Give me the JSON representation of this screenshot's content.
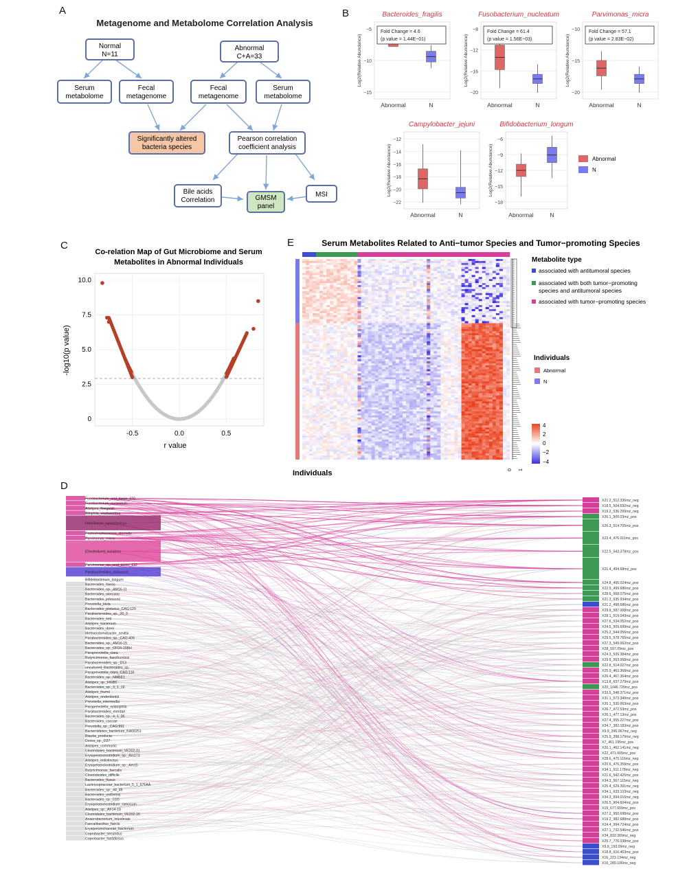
{
  "panels": {
    "A": {
      "letter": "A",
      "title": "Metagenome and Metabolome Correlation Analysis",
      "nodes": {
        "normal_l1": "Normal",
        "normal_l2": "N=11",
        "abnormal_l1": "Abnormal",
        "abnormal_l2": "C+A=33",
        "serum_metabolome_1_l1": "Serum",
        "serum_metabolome_1_l2": "metabolome",
        "fecal_metagenome_1_l1": "Fecal",
        "fecal_metagenome_1_l2": "metagenome",
        "fecal_metagenome_2_l1": "Fecal",
        "fecal_metagenome_2_l2": "metagenome",
        "serum_metabolome_2_l1": "Serum",
        "serum_metabolome_2_l2": "metabolome",
        "sig_bacteria_l1": "Significantly altered",
        "sig_bacteria_l2": "bacteria species",
        "pearson_l1": "Pearson correlation",
        "pearson_l2": "coefficient analysis",
        "bile_l1": "Bile acids",
        "bile_l2": "Correlation",
        "gmsm_l1": "GMSM",
        "gmsm_l2": "panel",
        "msi": "MSI"
      },
      "colors": {
        "box_border": "#5a6ea8",
        "arrow": "#7ea6d8",
        "sig_fill": "#f5c7a6",
        "gmsm_fill": "#cfe6c0"
      }
    },
    "B": {
      "letter": "B",
      "ylabel": "Log2(Relative Abundance)",
      "legend": [
        "Abnormal",
        "N"
      ],
      "colors": {
        "Abnormal": "#e06666",
        "N": "#7b7bf0",
        "title": "#d9333f"
      },
      "plots": [
        {
          "title": "Bacteroides_fragilis",
          "fc": "Fold Change = 4.6",
          "p": "(p value = 1.44E−01)",
          "yticks": [
            "−5",
            "−10",
            "−15"
          ],
          "xticks": [
            "Abnormal",
            "N"
          ]
        },
        {
          "title": "Fusobacterium_nucleatum",
          "fc": "Fold Change = 61.4",
          "p": "(p value = 1.56E−03)",
          "yticks": [
            "−8",
            "−12",
            "−16",
            "−20"
          ],
          "xticks": [
            "Abnormal",
            "N"
          ]
        },
        {
          "title": "Parvimonas_micra",
          "fc": "Fold Change = 57.1",
          "p": "(p value = 2.83E−02)",
          "yticks": [
            "−10",
            "−15",
            "−20"
          ],
          "xticks": [
            "Abnormal",
            "N"
          ]
        },
        {
          "title": "Campylobacter_jejuni",
          "fc": "",
          "p": "",
          "yticks": [
            "−12",
            "−14",
            "−16",
            "−18",
            "−20",
            "−22"
          ],
          "xticks": [
            "Abnormal",
            "N"
          ]
        },
        {
          "title": "Bifidobacterium_longum",
          "fc": "",
          "p": "",
          "yticks": [
            "−6",
            "−9",
            "−12",
            "−15",
            "−18"
          ],
          "xticks": [
            "Abnormal",
            "N"
          ]
        }
      ]
    },
    "C": {
      "letter": "C",
      "title_l1": "Co-relation Map of Gut Microbiome and Serum",
      "title_l2": "Metabolites in Abnormal Individuals",
      "xlabel": "r value",
      "ylabel": "-log10(p value)",
      "xticks": [
        "-0.5",
        "0.0",
        "0.5"
      ],
      "yticks": [
        "0",
        "2.5",
        "5.0",
        "7.5",
        "10.0"
      ],
      "colors": {
        "significant": "#b5402a",
        "nonsignificant": "#c8c8c8"
      }
    },
    "E": {
      "letter": "E",
      "title": "Serum Metabolites Related to Anti−tumor Species and Tumor−promoting Species",
      "metabolite_type_title": "Metabolite type",
      "metabolite_types": [
        {
          "label_l1": "associated with antitumoral species",
          "label_l2": "",
          "label_l3": "",
          "color": "#3a4fd0"
        },
        {
          "label_l1": "associated with both tumor−promoting",
          "label_l2": "species and antitumoral species",
          "label_l3": "",
          "color": "#3c9a55"
        },
        {
          "label_l1": "associated with tumor−promoting species",
          "label_l2": "",
          "label_l3": "",
          "color": "#d6409a"
        }
      ],
      "individuals_title": "Individuals",
      "individuals": [
        {
          "label": "Abnormal",
          "color": "#e87878"
        },
        {
          "label": "N",
          "color": "#7b7bf0"
        }
      ],
      "scale_ticks": [
        "4",
        "2",
        "0",
        "−2",
        "−4"
      ],
      "dendro_ticks": [
        "0",
        "1"
      ],
      "xlabel": "Individuals"
    },
    "D": {
      "letter": "D",
      "species": [
        "Fusobacterium_oral_taxon_370",
        "Fusobacterium_nucleatum",
        "Alistipes_finegoldii",
        "Bilophila_wadsworthia",
        "Odoribacter_splanchnicus",
        "Peptostreptococcus_stomatis",
        "Parvimonas_micra",
        "[Clostridium]_scindens",
        "Parvimonas_sp._oral_taxon_110",
        "Parabacteroides_distasonis",
        "Bifidobacterium_longum",
        "Bacteroides_faecis",
        "Bacteroides_sp._AM16-11",
        "Bacteroides_stercoris",
        "Bacteroides_johnsonii",
        "Prevotella_bivia",
        "Bacteroides_plebeius_CAG:120",
        "Parabacteroides_sp._20_3",
        "Bacteroides_ileti",
        "Alistipes_bacterium",
        "Bacteroides_dorei",
        "Methanobrevibacter_smithii",
        "Parabacteroides_sp._CAG:409",
        "Bacteroides_sp._AM16-15",
        "Bacteroides_sp._OF04-15BH",
        "Paraprevotella_clara",
        "Butyricimonas_faecihominis",
        "Parabacteroides_sp._D13",
        "uncultured_Bacteroides_sp.",
        "Paraprevotella_clara_CAG:116",
        "Bacteroides_sp._NMBE1",
        "Alistipes_sp._HGB5",
        "Bacteroides_sp._3_1_19",
        "Alistipes_ihumii",
        "Alistipes_onderdonkii",
        "Prevotella_intermedia",
        "Paraprevotella_xylaniphila",
        "Parabacteroides_merdae",
        "Bacteroides_sp._4_1_36",
        "Bacteroides_caccae",
        "Prevotella_sp._CAG:891",
        "Bacteroidetes_bacterium_KA00251",
        "Blautia_producta",
        "Dorea_sp._D27",
        "Alistipes_communis",
        "Clostridiales_bacterium_VE202-01",
        "Erysipelatoclostridium_sp._Am173",
        "Alistipes_indistinctus",
        "Erysipelatoclostridium_sp._Am15",
        "Butyricimonas_faecalis",
        "Clostridioides_difficile",
        "Bacteroides_fluxus",
        "Lachnospiraceae_bacterium_5_1_57FAA",
        "Bacteroides_sp._44_46",
        "Bacteroides_uniformis",
        "Bacteroides_sp._D20",
        "Erysipelatoclostridium_ramosum",
        "Alistipes_sp._AF14-19",
        "Clostridiales_bacterium_VE202-26",
        "Anaerobacterium_intestinale",
        "Faecalibacillus_faecis",
        "Erysipelotrichaceae_bacterium",
        "Coprobacter_secundus",
        "Coprobacter_fastidiosus"
      ],
      "metabolites": [
        "X21.2_512.336mz_neg",
        "X18.5_504.692mz_neg",
        "X19.2_536.299mz_neg",
        "X26.1_509.03mz_pos",
        "X26.3_514.705mz_pos",
        "X23.4_476.011mz_pos",
        "X22.5_543.378mz_pos",
        "X21.4_494.68mz_pos",
        "X24.8_495.024mz_pos",
        "X22.9_499.686mz_pos",
        "X28.6_568.075mz_pos",
        "X21.3_635.934mz_pos",
        "X21.2_498.686mz_pos",
        "X29.9_587.008mz_pos",
        "X28.1_519.043mz_pos",
        "X27.6_534.052mz_pos",
        "X24.5_509.699mz_pos",
        "X25.2_544.056mz_pos",
        "X29.5_578.765mz_pos",
        "X27.3_549.062mz_pos",
        "X28_597.09mz_pos",
        "X24.3_539.384mz_pos",
        "X29.9_563.068mz_pos",
        "X22.8_514.027mz_pos",
        "X25.9_463.368mz_pos",
        "X26.4_467.364mz_pos",
        "X13.8_637.279mz_pos",
        "X20_1046.729mz_pos",
        "X33.5_548.371mz_pos",
        "X31.1_573.349mz_pos",
        "X26.1_530.063mz_pos",
        "X26.7_472.53mz_pos",
        "X26.1_477.13mz_pos",
        "X27.4_555.227mz_pos",
        "X34.7_382.183mz_pos",
        "X9.9_396.067mz_neg",
        "X25.9_398.179mz_neg",
        "X7_461.195mz_pos",
        "X20.1_462.141mz_neg",
        "X22_471.005mz_pos",
        "X28.6_475.116mz_neg",
        "X20.6_476.359mz_pos",
        "X34.1_511.178mz_neg",
        "X21.6_542.425mz_pos",
        "X34.3_567.115mz_neg",
        "X25.4_629.391mz_neg",
        "X34.1_633.103mz_neg",
        "X34.3_694.016mz_neg",
        "X26.5_904.604mz_pos",
        "X19_677.609mz_pos",
        "X27.2_950.698mz_pos",
        "X19.2_982.688mz_pos",
        "X24.4_994.724mz_pos",
        "X27.1_732.546mz_pos",
        "X34_832.309mz_neg",
        "X25.7_776.038mz_pos",
        "X9.9_193.09mz_neg",
        "X18.8_616.463mz_pos",
        "X16_223.134mz_neg",
        "X16_289.106mz_neg"
      ],
      "colors": {
        "tumor": "#d6409a",
        "both": "#3c9a55",
        "anti": "#3a4fd0",
        "nonsig": "#d8d8d8"
      }
    }
  }
}
